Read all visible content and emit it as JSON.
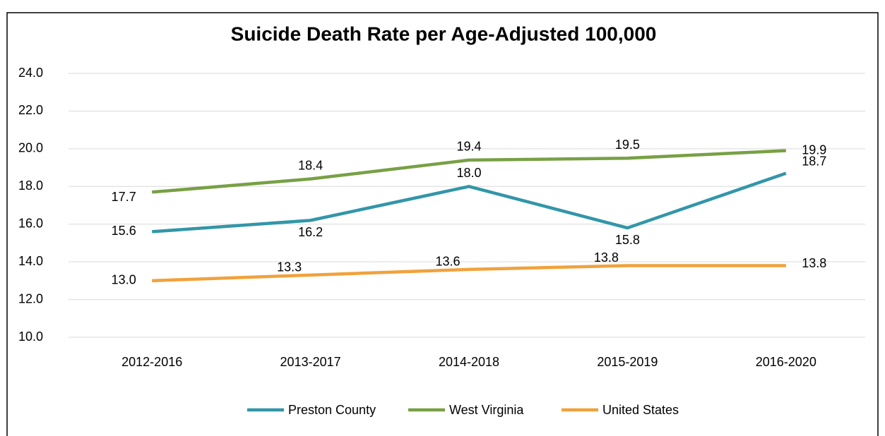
{
  "chart_data": {
    "type": "line",
    "title": "Suicide Death Rate per Age-Adjusted 100,000",
    "categories": [
      "2012-2016",
      "2013-2017",
      "2014-2018",
      "2015-2019",
      "2016-2020"
    ],
    "series": [
      {
        "name": "Preston County",
        "color": "#3296a8",
        "values": [
          15.6,
          16.2,
          18.0,
          15.8,
          18.7
        ],
        "value_labels": [
          "15.6",
          "16.2",
          "18.0",
          "15.8",
          "18.7"
        ]
      },
      {
        "name": "West Virginia",
        "color": "#78a045",
        "values": [
          17.7,
          18.4,
          19.4,
          19.5,
          19.9
        ],
        "value_labels": [
          "17.7",
          "18.4",
          "19.4",
          "19.5",
          "19.9"
        ]
      },
      {
        "name": "United States",
        "color": "#f0a23c",
        "values": [
          13.0,
          13.3,
          13.6,
          13.8,
          13.8
        ],
        "value_labels": [
          "13.0",
          "13.3",
          "13.6",
          "13.8",
          "13.8"
        ]
      }
    ],
    "ylim": [
      10,
      24
    ],
    "yticks": [
      {
        "value": 10,
        "label": "10.0"
      },
      {
        "value": 12,
        "label": "12.0"
      },
      {
        "value": 14,
        "label": "14.0"
      },
      {
        "value": 16,
        "label": "16.0"
      },
      {
        "value": 18,
        "label": "18.0"
      },
      {
        "value": 20,
        "label": "20.0"
      },
      {
        "value": 22,
        "label": "22.0"
      },
      {
        "value": 24,
        "label": "24.0"
      }
    ],
    "grid": true,
    "legend": "bottom"
  }
}
